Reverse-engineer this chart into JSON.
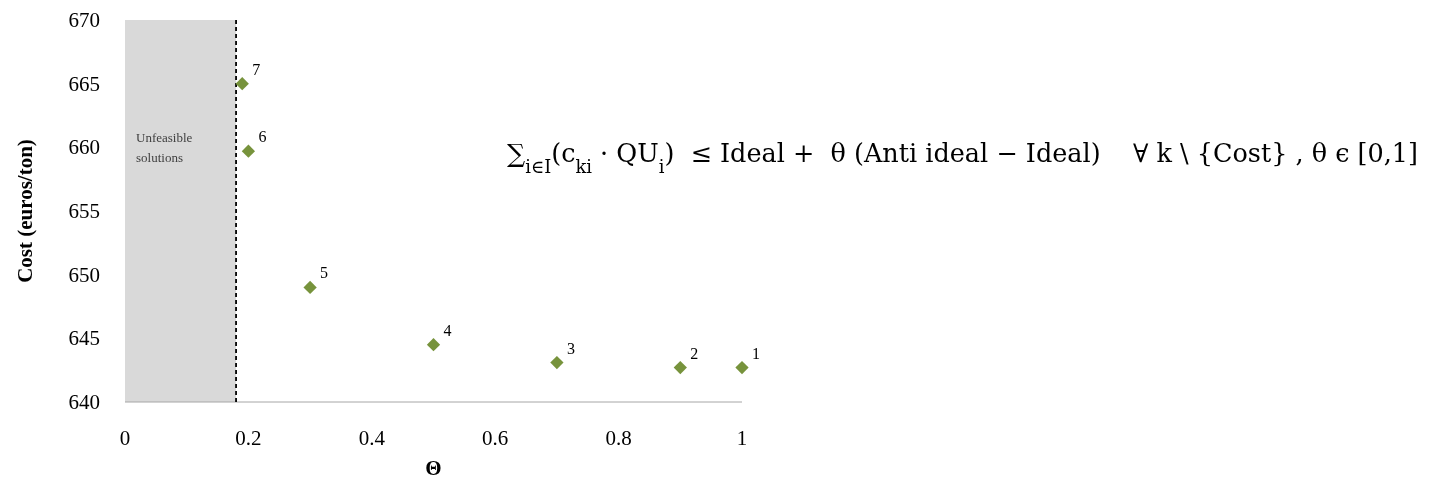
{
  "chart_data": {
    "type": "scatter",
    "xlabel": "Θ",
    "ylabel": "Cost (euros/ton)",
    "xlim": [
      0,
      1
    ],
    "xticks": [
      0,
      0.2,
      0.4,
      0.6,
      0.8,
      1
    ],
    "ylim": [
      640,
      670
    ],
    "yticks": [
      640,
      645,
      650,
      655,
      660,
      665,
      670
    ],
    "grid": false,
    "marker": "diamond",
    "series": [
      {
        "color": "#77933c",
        "x": [
          0.19,
          0.2,
          0.3,
          0.5,
          0.7,
          0.9,
          1
        ],
        "values": [
          665,
          659.7,
          649,
          644.5,
          643.1,
          642.7,
          642.7
        ]
      }
    ],
    "bands": [
      {
        "axis": "x",
        "from": 0,
        "to": 0.18,
        "label": "Unfeasible solutions",
        "color": "#d9d9d9"
      }
    ],
    "ref_lines": [
      {
        "axis": "x",
        "value": 0.18,
        "color": "#000000",
        "line_style": "dashed"
      }
    ],
    "annotations": [
      {
        "text": "1",
        "x": 1,
        "y": 642.7
      },
      {
        "text": "2",
        "x": 0.9,
        "y": 642.7
      },
      {
        "text": "3",
        "x": 0.7,
        "y": 643.1
      },
      {
        "text": "4",
        "x": 0.5,
        "y": 644.5
      },
      {
        "text": "5",
        "x": 0.3,
        "y": 649
      },
      {
        "text": "6",
        "x": 0.2,
        "y": 659.7
      },
      {
        "text": "7",
        "x": 0.19,
        "y": 665
      },
      "∑$_{i∈I}$(c$_{ki}$ · QU$_{i}$)  ≤ Ideal +  θ (Anti ideal − Ideal)    ∀ k \\ {Cost} , θ ϵ [0,1]"
    ]
  }
}
